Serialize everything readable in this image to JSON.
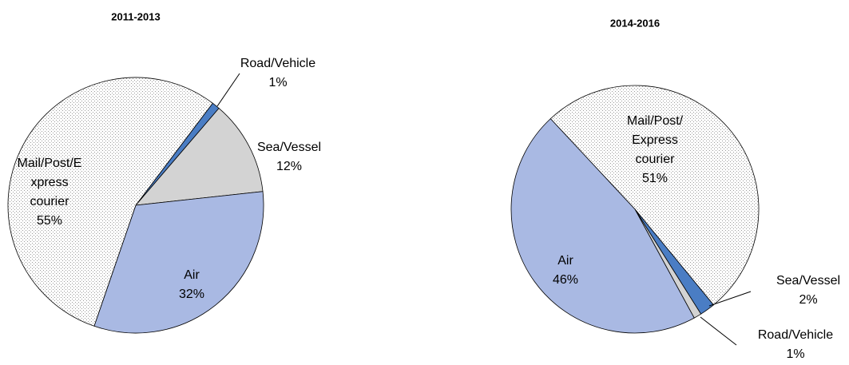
{
  "chart_data": [
    {
      "type": "pie",
      "title": "2011-2013",
      "categories": [
        "Road/Vehicle",
        "Sea/Vessel",
        "Air",
        "Mail/Post/E\nxpress\ncourier"
      ],
      "values": [
        1,
        12,
        32,
        55
      ],
      "value_labels": [
        "1%",
        "12%",
        "32%",
        "55%"
      ],
      "colors": [
        "#4a7dc4",
        "#d3d3d3",
        "#a9b9e3",
        "dotted"
      ]
    },
    {
      "type": "pie",
      "title": "2014-2016",
      "categories": [
        "Mail/Post/\nExpress\ncourier",
        "Sea/Vessel",
        "Road/Vehicle",
        "Air"
      ],
      "values": [
        51,
        2,
        1,
        46
      ],
      "value_labels": [
        "51%",
        "2%",
        "1%",
        "46%"
      ],
      "colors": [
        "dotted",
        "#4a7dc4",
        "#d3d3d3",
        "#a9b9e3"
      ]
    }
  ]
}
